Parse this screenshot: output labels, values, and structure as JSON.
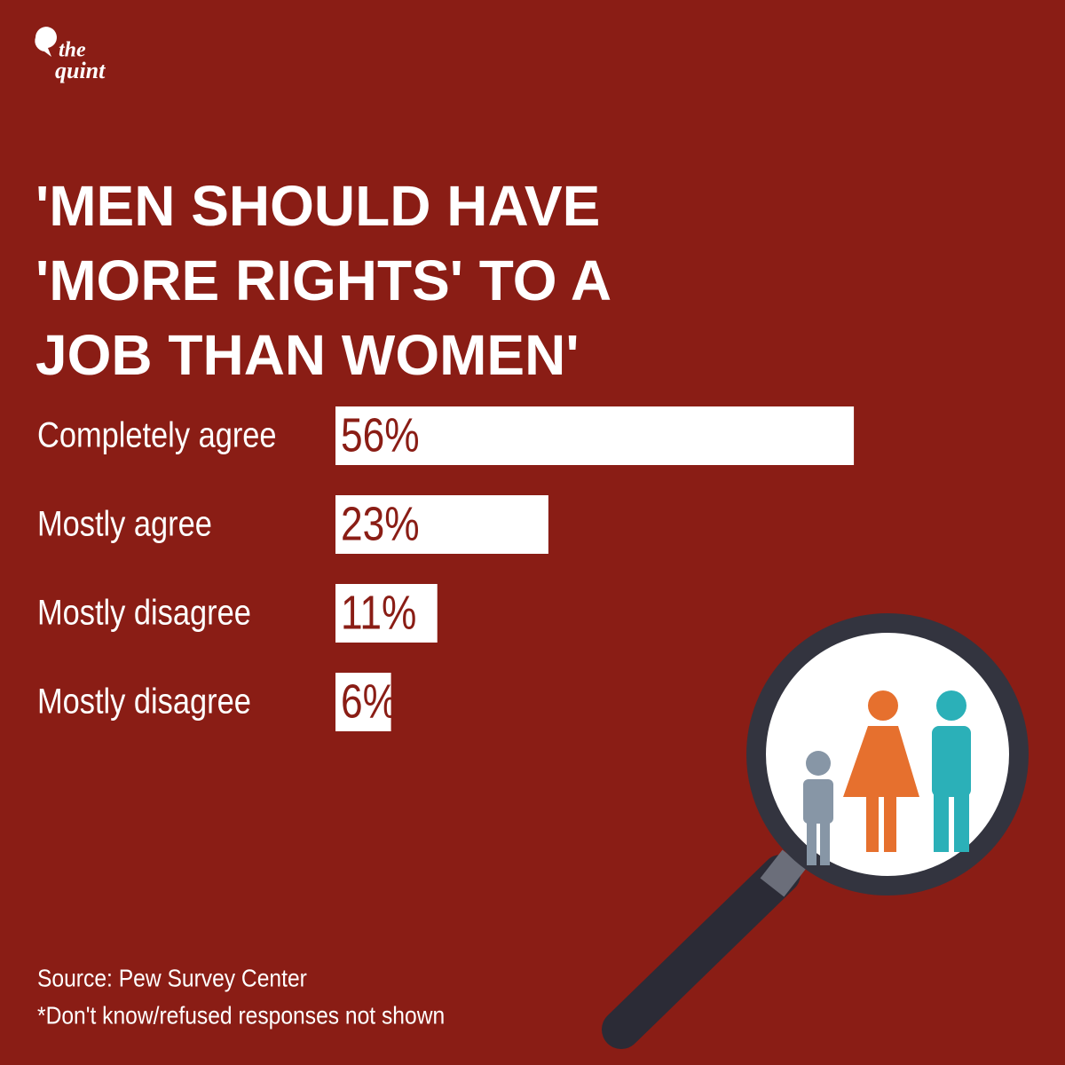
{
  "brand": [
    "the",
    "quint"
  ],
  "chart_data": {
    "type": "bar",
    "orientation": "horizontal",
    "title": "'MEN SHOULD HAVE 'MORE RIGHTS' TO A JOB THAN WOMEN'",
    "categories": [
      "Completely agree",
      "Mostly agree",
      "Mostly disagree",
      "Mostly disagree"
    ],
    "values": [
      56,
      23,
      11,
      6
    ],
    "value_labels": [
      "56%",
      "23%",
      "11%",
      "6%"
    ],
    "color": "#ffffff",
    "source": "Source: Pew Survey Center",
    "note": "*Don't know/refused responses not shown"
  }
}
